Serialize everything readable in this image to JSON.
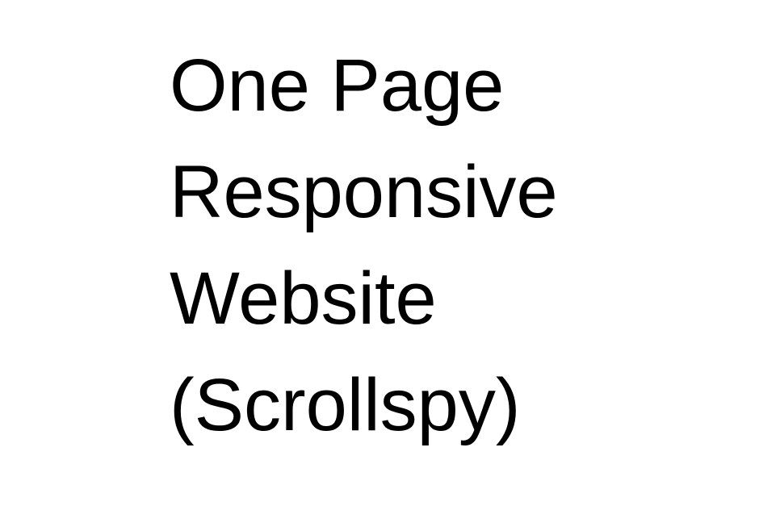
{
  "title": {
    "lines": [
      "One Page",
      "Responsive",
      "Website",
      "(Scrollspy)"
    ]
  },
  "colors": {
    "background": "#ffffff",
    "text": "#000000"
  }
}
